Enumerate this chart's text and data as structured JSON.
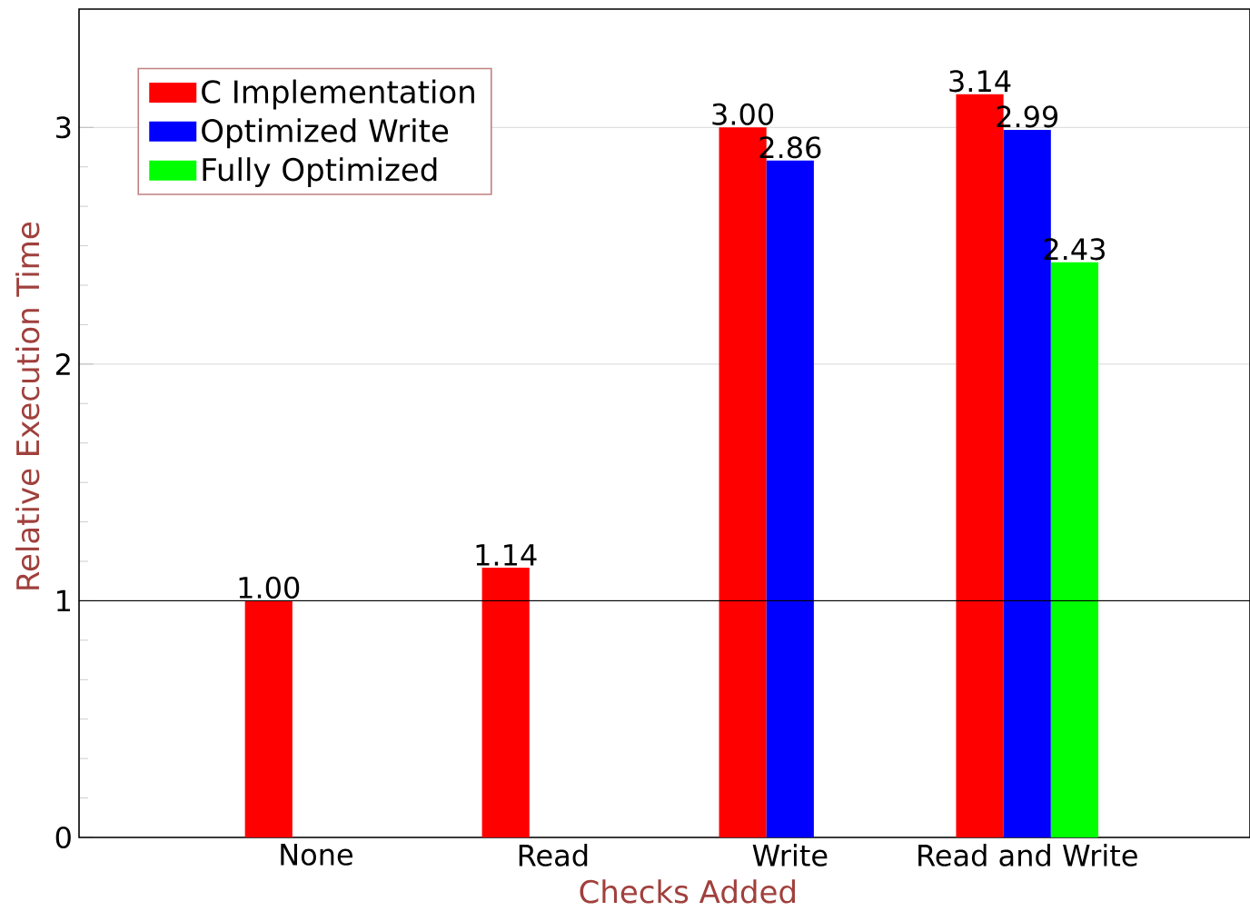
{
  "chart_data": {
    "type": "bar",
    "xlabel": "Checks Added",
    "ylabel": "Relative Execution Time",
    "categories": [
      "None",
      "Read",
      "Write",
      "Read and Write"
    ],
    "series": [
      {
        "name": "C Implementation",
        "color": "#ff0000",
        "values": [
          1.0,
          1.14,
          3.0,
          3.14
        ],
        "value_labels": [
          "1.00",
          "1.14",
          "3.00",
          "3.14"
        ]
      },
      {
        "name": "Optimized Write",
        "color": "#0000ff",
        "values": [
          null,
          null,
          2.86,
          2.99
        ],
        "value_labels": [
          null,
          null,
          "2.86",
          "2.99"
        ]
      },
      {
        "name": "Fully Optimized",
        "color": "#00ff00",
        "values": [
          null,
          null,
          null,
          2.43
        ],
        "value_labels": [
          null,
          null,
          null,
          "2.43"
        ]
      }
    ],
    "ylim": [
      0,
      3.5
    ],
    "yticks": [
      0,
      1,
      2,
      3
    ],
    "grid": "y",
    "legend": "top left",
    "ref_lines": [
      {
        "axis": "y",
        "value": 1,
        "color": "#000000"
      }
    ]
  }
}
